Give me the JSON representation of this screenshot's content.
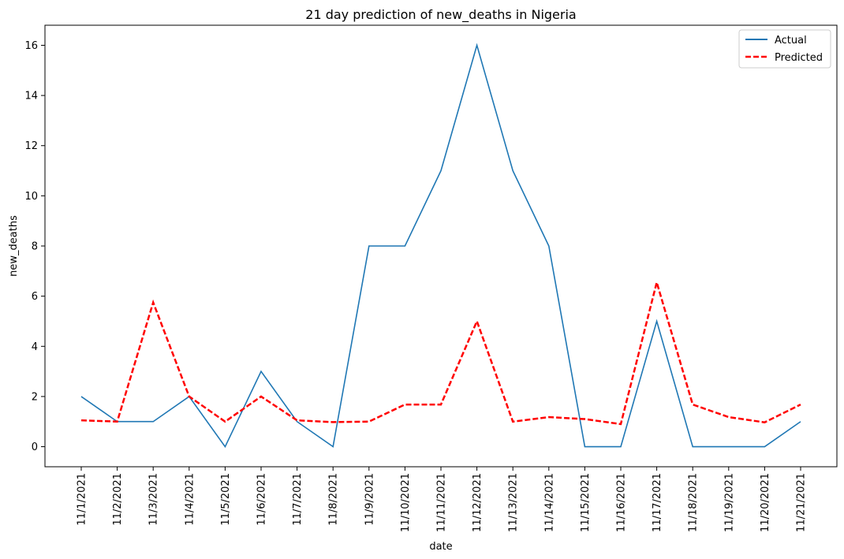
{
  "chart_data": {
    "type": "line",
    "title": "21 day prediction of new_deaths in Nigeria",
    "xlabel": "date",
    "ylabel": "new_deaths",
    "ylim": [
      -0.8,
      16.8
    ],
    "yticks": [
      "0",
      "2",
      "4",
      "6",
      "8",
      "10",
      "12",
      "14",
      "16"
    ],
    "categories": [
      "11/1/2021",
      "11/2/2021",
      "11/3/2021",
      "11/4/2021",
      "11/5/2021",
      "11/6/2021",
      "11/7/2021",
      "11/8/2021",
      "11/9/2021",
      "11/10/2021",
      "11/11/2021",
      "11/12/2021",
      "11/13/2021",
      "11/14/2021",
      "11/15/2021",
      "11/16/2021",
      "11/17/2021",
      "11/18/2021",
      "11/19/2021",
      "11/20/2021",
      "11/21/2021"
    ],
    "series": [
      {
        "name": "Actual",
        "color": "#1f77b4",
        "style": "solid",
        "values": [
          2,
          1,
          1,
          2,
          0,
          3,
          1,
          0,
          8,
          8,
          11,
          16,
          11,
          8,
          0,
          0,
          5,
          0,
          0,
          0,
          1
        ]
      },
      {
        "name": "Predicted",
        "color": "#ff0000",
        "style": "dashed",
        "values": [
          1.05,
          1.0,
          5.75,
          2.0,
          1.0,
          2.0,
          1.05,
          0.98,
          1.0,
          1.68,
          1.68,
          5.0,
          1.0,
          1.18,
          1.1,
          0.9,
          6.55,
          1.68,
          1.18,
          0.97,
          1.68
        ]
      }
    ],
    "legend_position": "top-right",
    "grid": false
  }
}
